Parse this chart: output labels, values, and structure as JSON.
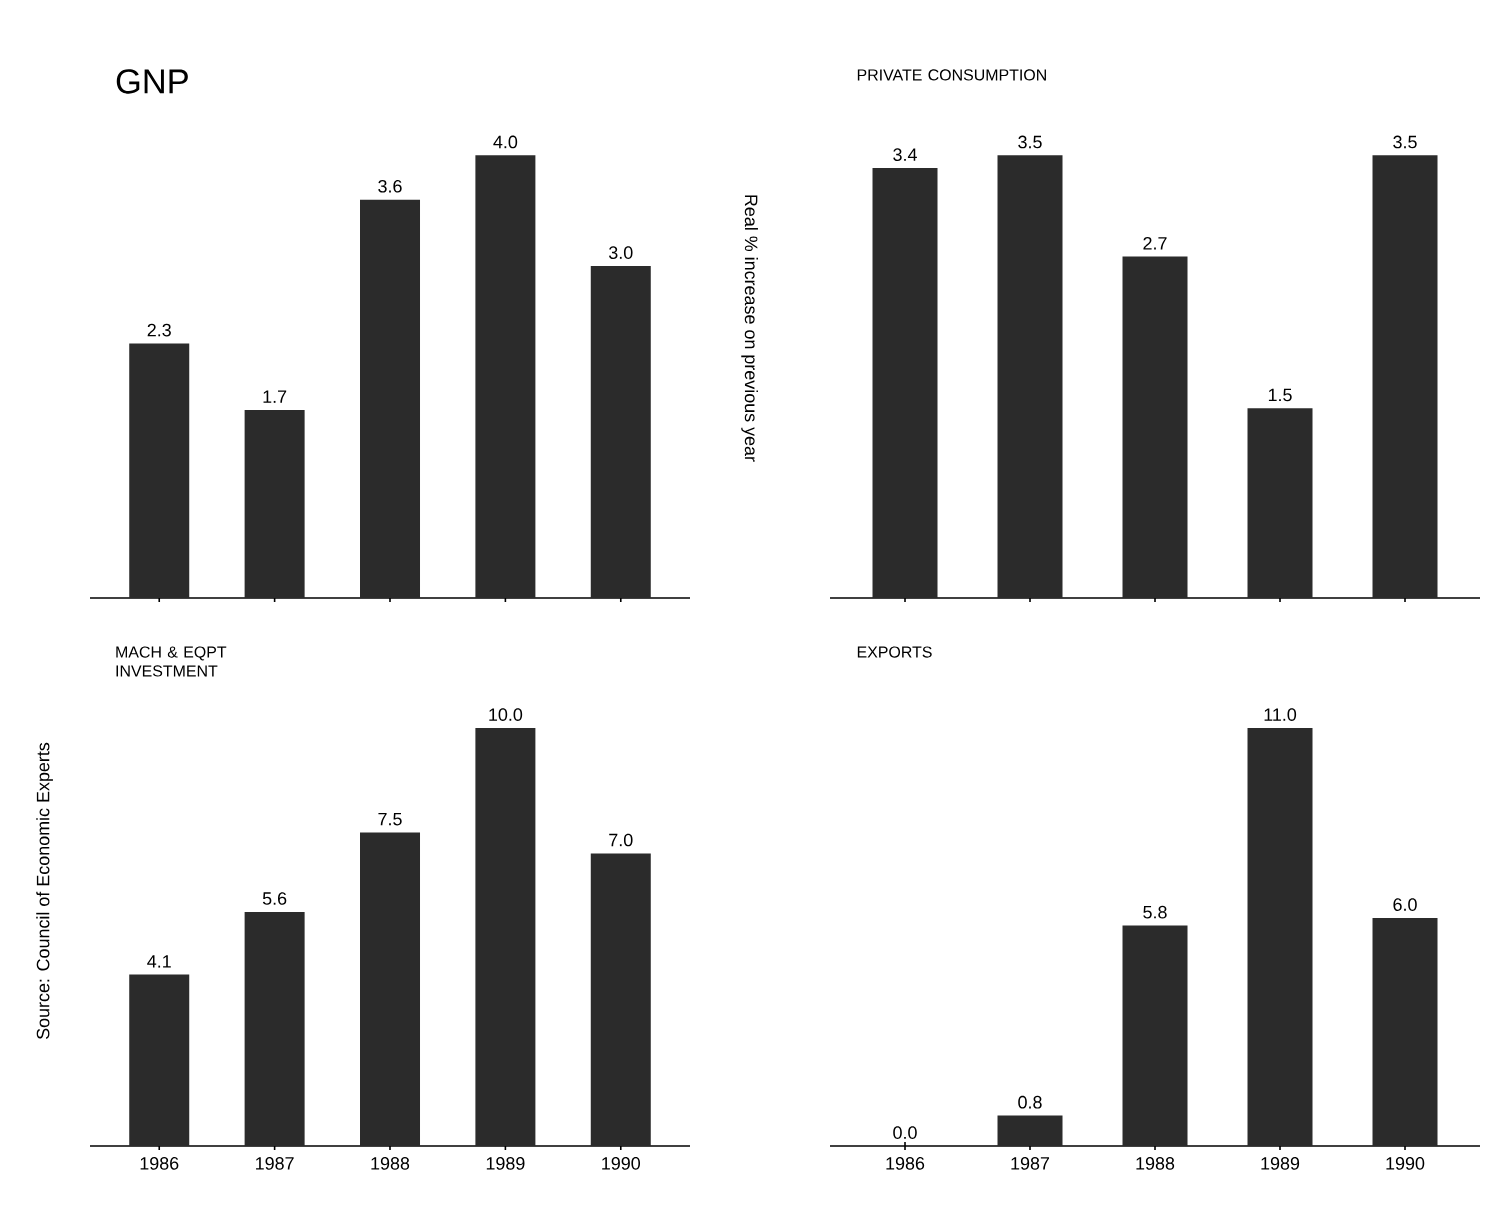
{
  "chart_data": [
    {
      "type": "bar",
      "title": "GNP",
      "categories": [
        "1986",
        "1987",
        "1988",
        "1989",
        "1990"
      ],
      "values": [
        2.3,
        1.7,
        3.6,
        4.0,
        3.0
      ],
      "value_labels": [
        "2.3",
        "1.7",
        "3.6",
        "4.0",
        "3.0"
      ],
      "color": "#2b2b2b",
      "tick_labels": false
    },
    {
      "type": "bar",
      "title": "PRIVATE CONSUMPTION",
      "ylabel": "Real % increase on previous year",
      "categories": [
        "1986",
        "1987",
        "1988",
        "1989",
        "1990"
      ],
      "values": [
        3.4,
        3.5,
        2.7,
        1.5,
        3.5
      ],
      "value_labels": [
        "3.4",
        "3.5",
        "2.7",
        "1.5",
        "3.5"
      ],
      "color": "#2b2b2b",
      "tick_labels": false
    },
    {
      "type": "bar",
      "title": "MACH & EQPT INVESTMENT",
      "annotations": [
        "Source: Council of Economic Experts"
      ],
      "categories": [
        "1986",
        "1987",
        "1988",
        "1989",
        "1990"
      ],
      "values": [
        4.1,
        5.6,
        7.5,
        10.0,
        7.0
      ],
      "value_labels": [
        "4.1",
        "5.6",
        "7.5",
        "10.0",
        "7.0"
      ],
      "color": "#2b2b2b",
      "tick_labels": "x"
    },
    {
      "type": "bar",
      "title": "EXPORTS",
      "categories": [
        "1986",
        "1987",
        "1988",
        "1989",
        "1990"
      ],
      "values": [
        0.0,
        0.8,
        5.8,
        11.0,
        6.0
      ],
      "value_labels": [
        "0.0",
        "0.8",
        "5.8",
        "11.0",
        "6.0"
      ],
      "color": "#2b2b2b",
      "tick_labels": "x"
    }
  ]
}
